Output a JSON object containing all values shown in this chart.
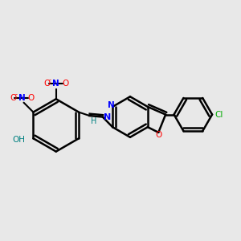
{
  "background_color": "#e8e8e8",
  "bond_color": "#000000",
  "atom_colors": {
    "N": "#0000ff",
    "O": "#ff0000",
    "H": "#008080",
    "Cl": "#00aa00",
    "C": "#000000"
  },
  "figsize": [
    3.0,
    3.0
  ],
  "dpi": 100
}
